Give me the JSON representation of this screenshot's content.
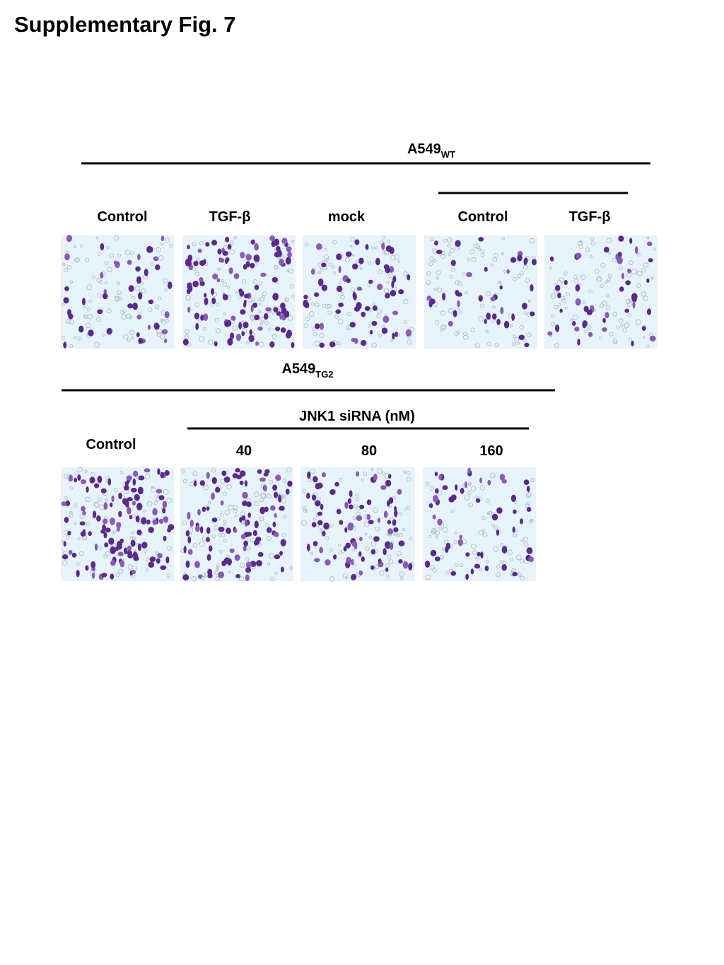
{
  "title": "Supplementary Fig. 7",
  "top_group": {
    "label": "A549",
    "subscript": "WT",
    "columns": [
      "Control",
      "TGF-β",
      "mock",
      "Control",
      "TGF-β"
    ]
  },
  "bottom_group": {
    "label": "A549",
    "subscript": "TG2",
    "treatment": "JNK1 siRNA (nM)",
    "columns": [
      "Control",
      "40",
      "80",
      "160"
    ]
  }
}
